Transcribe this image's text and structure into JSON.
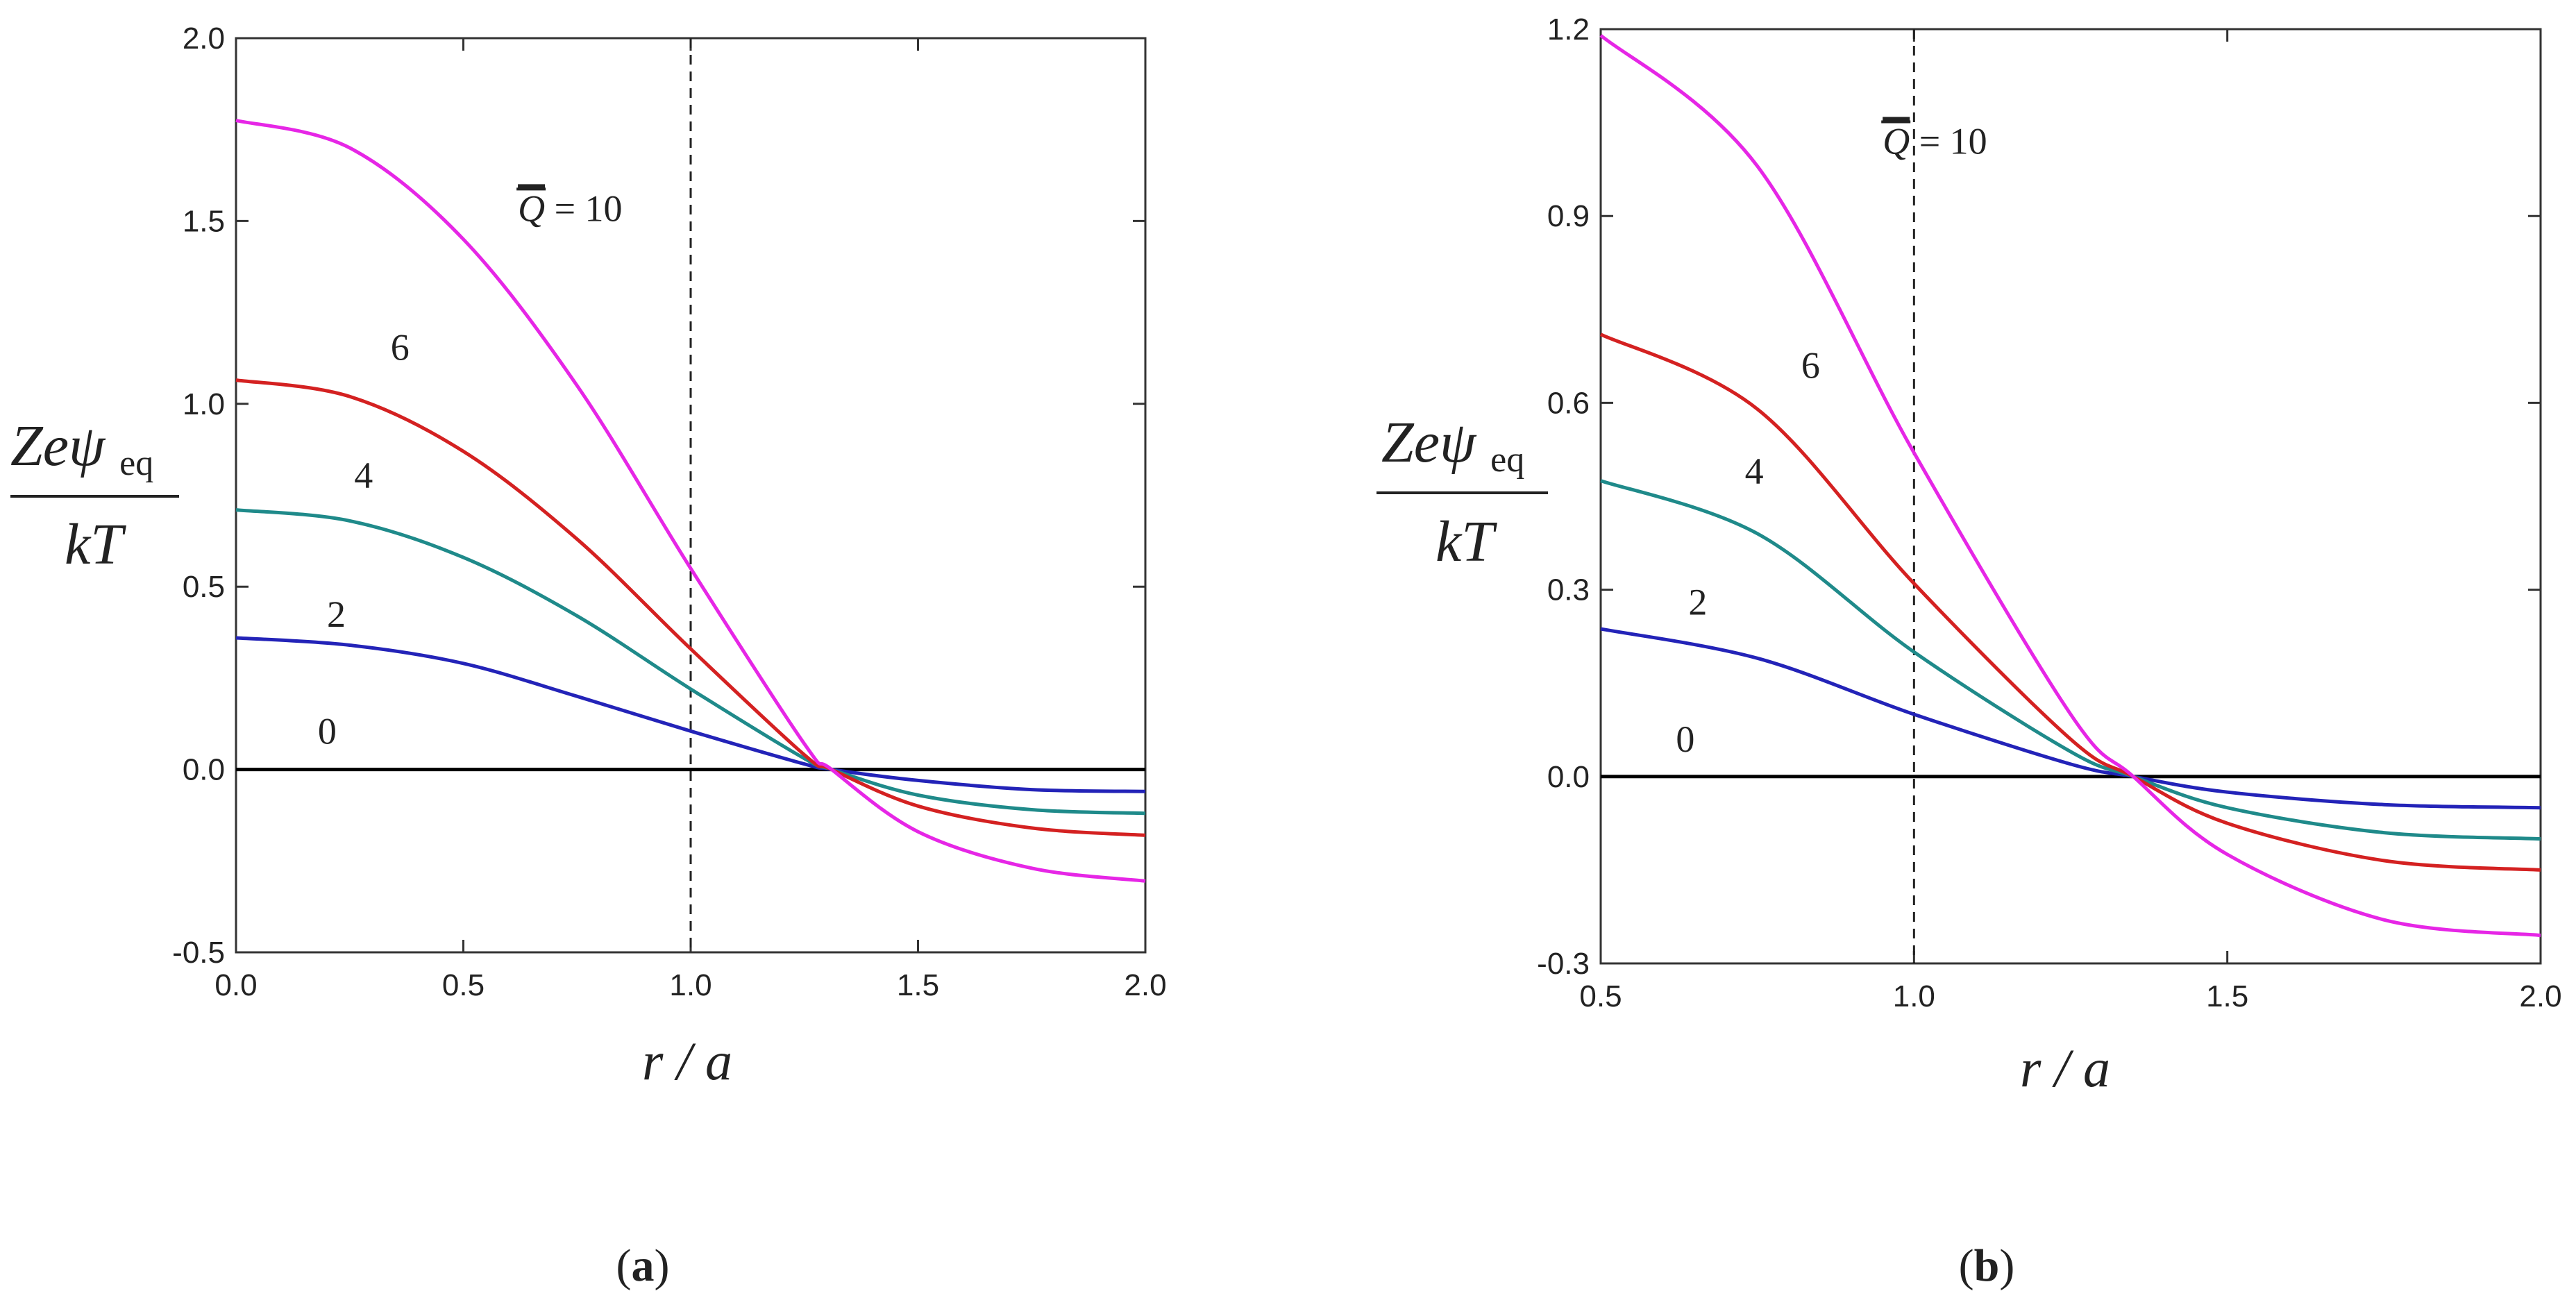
{
  "chart_data": [
    {
      "type": "line",
      "panel": "(a)",
      "panel_letter": "a",
      "xlabel": "r / a",
      "ylabel_top": "Zeψ",
      "ylabel_sub": "eq",
      "ylabel_bottom": "kT",
      "xlim": [
        0.0,
        2.0
      ],
      "ylim": [
        -0.5,
        2.0
      ],
      "xticks": [
        "0.0",
        "0.5",
        "1.0",
        "1.5",
        "2.0"
      ],
      "yticks": [
        "-0.5",
        "0.0",
        "0.5",
        "1.0",
        "1.5",
        "2.0"
      ],
      "vline_x": 1.0,
      "series": [
        {
          "name": "0",
          "label": "0",
          "color": "#000000",
          "x": [
            0,
            0.25,
            0.5,
            0.75,
            1.0,
            1.25,
            1.31,
            1.5,
            1.75,
            2.0
          ],
          "y": [
            0,
            0,
            0,
            0,
            0,
            0,
            0,
            0,
            0,
            0
          ],
          "label_x": 0.18,
          "label_y": 0.07
        },
        {
          "name": "2",
          "label": "2",
          "color": "#2323b8",
          "x": [
            0,
            0.25,
            0.5,
            0.75,
            1.0,
            1.25,
            1.31,
            1.5,
            1.75,
            2.0
          ],
          "y": [
            0.36,
            0.34,
            0.29,
            0.2,
            0.105,
            0.015,
            0.0,
            -0.03,
            -0.055,
            -0.06
          ],
          "label_x": 0.2,
          "label_y": 0.39
        },
        {
          "name": "4",
          "label": "4",
          "color": "#1f8a8a",
          "x": [
            0,
            0.25,
            0.5,
            0.75,
            1.0,
            1.25,
            1.31,
            1.5,
            1.75,
            2.0
          ],
          "y": [
            0.71,
            0.68,
            0.58,
            0.42,
            0.22,
            0.03,
            0.0,
            -0.07,
            -0.11,
            -0.12
          ],
          "label_x": 0.26,
          "label_y": 0.77
        },
        {
          "name": "6",
          "label": "6",
          "color": "#d42121",
          "x": [
            0,
            0.25,
            0.5,
            0.75,
            1.0,
            1.25,
            1.31,
            1.5,
            1.75,
            2.0
          ],
          "y": [
            1.065,
            1.02,
            0.87,
            0.63,
            0.33,
            0.04,
            0.0,
            -0.1,
            -0.16,
            -0.18
          ],
          "label_x": 0.34,
          "label_y": 1.12
        },
        {
          "name": "10",
          "label": "10",
          "color": "#e626e6",
          "x": [
            0,
            0.25,
            0.5,
            0.75,
            1.0,
            1.25,
            1.31,
            1.5,
            1.75,
            2.0
          ],
          "y": [
            1.775,
            1.7,
            1.45,
            1.05,
            0.55,
            0.07,
            0.0,
            -0.17,
            -0.27,
            -0.305
          ],
          "label_x": 0.62,
          "label_y": 1.5
        }
      ],
      "q_label_prefix": "Q",
      "q_label_suffix": "= 10"
    },
    {
      "type": "line",
      "panel": "(b)",
      "panel_letter": "b",
      "xlabel": "r / a",
      "ylabel_top": "Zeψ",
      "ylabel_sub": "eq",
      "ylabel_bottom": "kT",
      "xlim": [
        0.5,
        2.0
      ],
      "ylim": [
        -0.3,
        1.2
      ],
      "xticks": [
        "0.5",
        "1.0",
        "1.5",
        "2.0"
      ],
      "yticks": [
        "-0.3",
        "0.0",
        "0.3",
        "0.6",
        "0.9",
        "1.2"
      ],
      "vline_x": 1.0,
      "series": [
        {
          "name": "0",
          "label": "0",
          "color": "#000000",
          "x": [
            0.5,
            0.75,
            1.0,
            1.25,
            1.35,
            1.5,
            1.75,
            2.0
          ],
          "y": [
            0,
            0,
            0,
            0,
            0,
            0,
            0,
            0
          ],
          "label_x": 0.62,
          "label_y": 0.04
        },
        {
          "name": "2",
          "label": "2",
          "color": "#2323b8",
          "x": [
            0.5,
            0.75,
            1.0,
            1.25,
            1.35,
            1.5,
            1.75,
            2.0
          ],
          "y": [
            0.237,
            0.19,
            0.1,
            0.02,
            0.0,
            -0.025,
            -0.045,
            -0.05
          ],
          "label_x": 0.64,
          "label_y": 0.26
        },
        {
          "name": "4",
          "label": "4",
          "color": "#1f8a8a",
          "x": [
            0.5,
            0.75,
            1.0,
            1.25,
            1.35,
            1.5,
            1.75,
            2.0
          ],
          "y": [
            0.475,
            0.39,
            0.2,
            0.04,
            0.0,
            -0.05,
            -0.09,
            -0.1
          ],
          "label_x": 0.73,
          "label_y": 0.47
        },
        {
          "name": "6",
          "label": "6",
          "color": "#d42121",
          "x": [
            0.5,
            0.75,
            1.0,
            1.25,
            1.35,
            1.5,
            1.75,
            2.0
          ],
          "y": [
            0.71,
            0.59,
            0.31,
            0.06,
            0.0,
            -0.075,
            -0.135,
            -0.15
          ],
          "label_x": 0.82,
          "label_y": 0.64
        },
        {
          "name": "10",
          "label": "10",
          "color": "#e626e6",
          "x": [
            0.5,
            0.75,
            1.0,
            1.25,
            1.35,
            1.5,
            1.75,
            2.0
          ],
          "y": [
            1.19,
            0.98,
            0.52,
            0.1,
            0.0,
            -0.125,
            -0.23,
            -0.255
          ],
          "label_x": 0.95,
          "label_y": 1.0
        }
      ],
      "q_label_prefix": "Q",
      "q_label_suffix": "= 10"
    }
  ]
}
